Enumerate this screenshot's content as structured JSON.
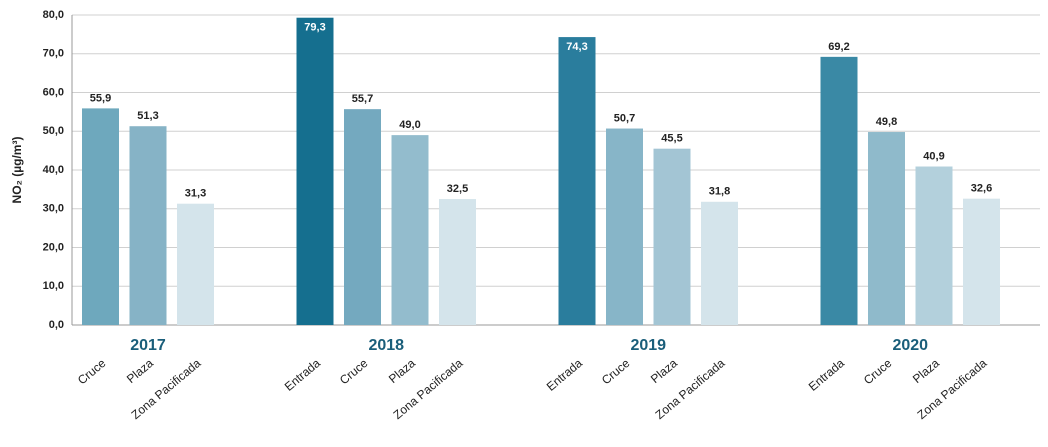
{
  "chart_data": {
    "type": "bar",
    "y_label": "NO₂ (µg/m³)",
    "ylim": [
      0,
      80
    ],
    "yticks": [
      {
        "value": 0,
        "label": "0,0"
      },
      {
        "value": 10,
        "label": "10,0"
      },
      {
        "value": 20,
        "label": "20,0"
      },
      {
        "value": 30,
        "label": "30,0"
      },
      {
        "value": 40,
        "label": "40,0"
      },
      {
        "value": 50,
        "label": "50,0"
      },
      {
        "value": 60,
        "label": "60,0"
      },
      {
        "value": 70,
        "label": "70,0"
      },
      {
        "value": 80,
        "label": "80,0"
      }
    ],
    "grid": true,
    "groups": [
      {
        "name": "2017",
        "categories": [
          "Cruce",
          "Plaza",
          "Zona Pacificada"
        ],
        "values": [
          55.9,
          51.3,
          31.3
        ],
        "value_labels": [
          "55,9",
          "51,3",
          "31,3"
        ],
        "colors": [
          "#6ea8bd",
          "#86b3c6",
          "#d4e4eb"
        ]
      },
      {
        "name": "2018",
        "categories": [
          "Entrada",
          "Cruce",
          "Plaza",
          "Zona Pacificada"
        ],
        "values": [
          79.3,
          55.7,
          49.0,
          32.5
        ],
        "value_labels": [
          "79,3",
          "55,7",
          "49,0",
          "32,5"
        ],
        "colors": [
          "#156f8f",
          "#74a9bf",
          "#93bccd",
          "#d4e4eb"
        ]
      },
      {
        "name": "2019",
        "categories": [
          "Entrada",
          "Cruce",
          "Plaza",
          "Zona Pacificada"
        ],
        "values": [
          74.3,
          50.7,
          45.5,
          31.8
        ],
        "value_labels": [
          "74,3",
          "50,7",
          "45,5",
          "31,8"
        ],
        "colors": [
          "#2a7d9d",
          "#87b5c8",
          "#a3c5d4",
          "#d4e4eb"
        ]
      },
      {
        "name": "2020",
        "categories": [
          "Entrada",
          "Cruce",
          "Plaza",
          "Zona Pacificada"
        ],
        "values": [
          69.2,
          49.8,
          40.9,
          32.6
        ],
        "value_labels": [
          "69,2",
          "49,8",
          "40,9",
          "32,6"
        ],
        "colors": [
          "#3a89a5",
          "#8fbacb",
          "#b3d0dc",
          "#d4e4eb"
        ]
      }
    ]
  }
}
